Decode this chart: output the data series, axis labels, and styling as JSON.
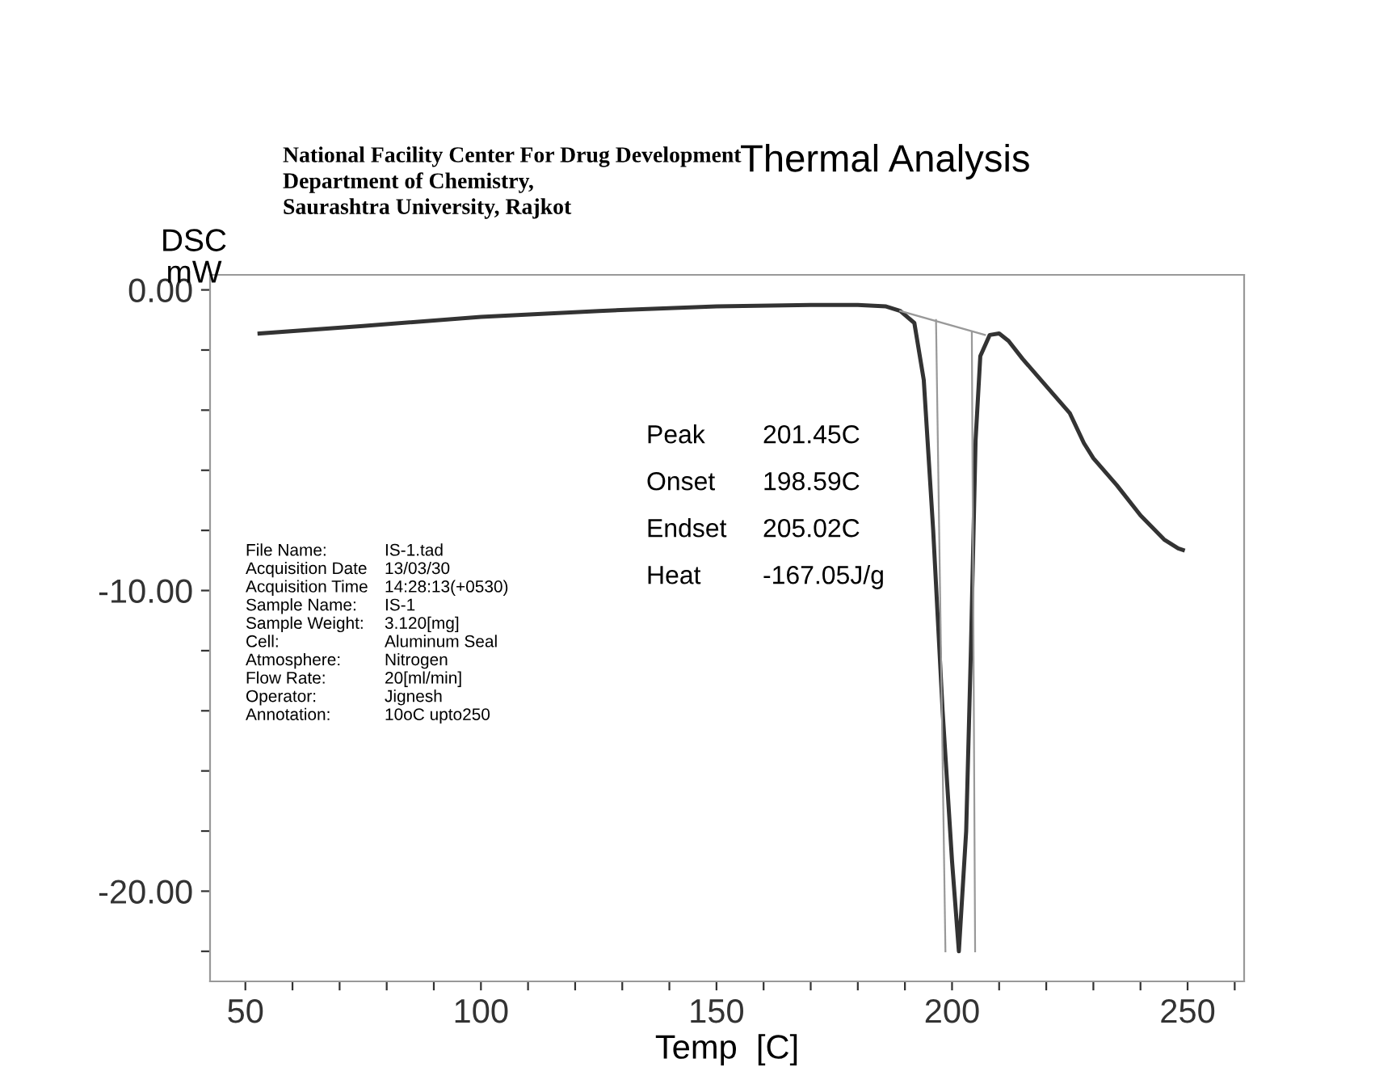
{
  "chart_data": {
    "type": "line",
    "title": "Thermal Analysis",
    "xlabel": "Temp  [C]",
    "ylabel": "DSC\nmW",
    "xlim": [
      42.5,
      262
    ],
    "ylim": [
      -23.0,
      0.5
    ],
    "xticks": [
      {
        "value": 50,
        "label": "50"
      },
      {
        "value": 60,
        "label": null
      },
      {
        "value": 70,
        "label": null
      },
      {
        "value": 80,
        "label": null
      },
      {
        "value": 90,
        "label": null
      },
      {
        "value": 100,
        "label": "100"
      },
      {
        "value": 110,
        "label": null
      },
      {
        "value": 120,
        "label": null
      },
      {
        "value": 130,
        "label": null
      },
      {
        "value": 140,
        "label": null
      },
      {
        "value": 150,
        "label": "150"
      },
      {
        "value": 160,
        "label": null
      },
      {
        "value": 170,
        "label": null
      },
      {
        "value": 180,
        "label": null
      },
      {
        "value": 190,
        "label": null
      },
      {
        "value": 200,
        "label": "200"
      },
      {
        "value": 210,
        "label": null
      },
      {
        "value": 220,
        "label": null
      },
      {
        "value": 230,
        "label": null
      },
      {
        "value": 240,
        "label": null
      },
      {
        "value": 250,
        "label": "250"
      },
      {
        "value": 260,
        "label": null
      }
    ],
    "yticks": [
      {
        "value": 0,
        "label": "0.00"
      },
      {
        "value": -2,
        "label": null
      },
      {
        "value": -4,
        "label": null
      },
      {
        "value": -6,
        "label": null
      },
      {
        "value": -8,
        "label": null
      },
      {
        "value": -10,
        "label": "-10.00"
      },
      {
        "value": -12,
        "label": null
      },
      {
        "value": -14,
        "label": null
      },
      {
        "value": -16,
        "label": null
      },
      {
        "value": -18,
        "label": null
      },
      {
        "value": -20,
        "label": "-20.00"
      },
      {
        "value": -22,
        "label": null
      }
    ],
    "grid": false,
    "legend": false,
    "series": [
      {
        "color": "#333333",
        "x": [
          53,
          75,
          100,
          125,
          150,
          170,
          180,
          186,
          189,
          192,
          194,
          196,
          198,
          200,
          201.45,
          203,
          204,
          205,
          206,
          208,
          210,
          212,
          215,
          220,
          225,
          228,
          230,
          235,
          240,
          245,
          248,
          249
        ],
        "values": [
          -1.45,
          -1.2,
          -0.9,
          -0.7,
          -0.55,
          -0.5,
          -0.5,
          -0.55,
          -0.7,
          -1.1,
          -3.0,
          -8.0,
          -14.0,
          -19.0,
          -22.0,
          -18.0,
          -12.0,
          -5.0,
          -2.2,
          -1.5,
          -1.45,
          -1.7,
          -2.3,
          -3.2,
          -4.1,
          -5.1,
          -5.6,
          -6.5,
          -7.5,
          -8.3,
          -8.6,
          -8.65
        ]
      },
      {
        "color": "#999999",
        "x": [
          189,
          207
        ],
        "values": [
          -0.7,
          -1.5
        ]
      },
      {
        "color": "#999999",
        "x": [
          196.6,
          198.6
        ],
        "values": [
          -1.0,
          -22.0
        ]
      },
      {
        "color": "#999999",
        "x": [
          204.2,
          204.9
        ],
        "values": [
          -1.4,
          -22.0
        ]
      }
    ],
    "annotations": [
      "National Facility Center For Drug Development",
      "Department of Chemistry,",
      "Saurashtra University, Rajkot",
      "Peak",
      "201.45C",
      "Onset",
      "198.59C",
      "Endset",
      "205.02C",
      "Heat",
      "-167.05J/g",
      "File Name:",
      "IS-1.tad",
      "Acquisition Date",
      "13/03/30",
      "Acquisition Time",
      "14:28:13(+0530)",
      "Sample Name:",
      "IS-1",
      "Sample Weight:",
      "3.120[mg]",
      "Cell:",
      "Aluminum Seal",
      "Atmosphere:",
      "Nitrogen",
      "Flow Rate:",
      "20[ml/min]",
      "Operator:",
      "Jignesh",
      "Annotation:",
      "10oC upto250"
    ]
  }
}
